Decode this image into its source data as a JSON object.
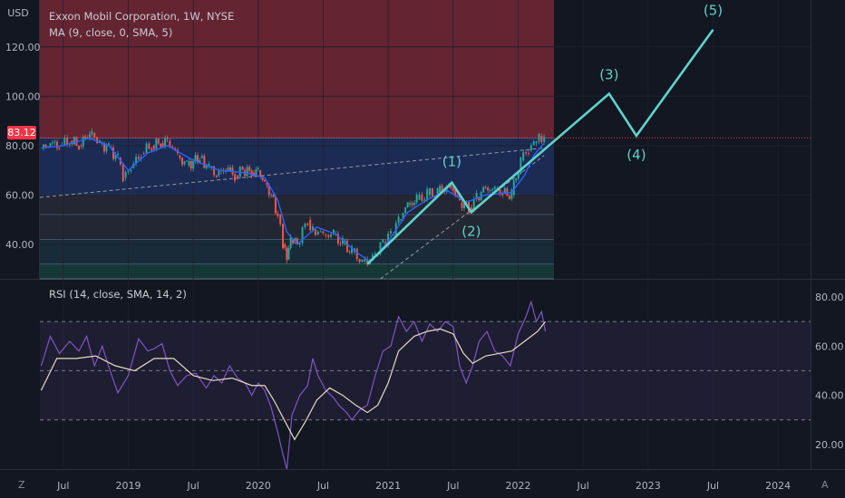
{
  "header": {
    "currency": "USD",
    "title": "Exxon Mobil Corporation, 1W, NYSE",
    "ma_label": "MA (9, close, 0, SMA, 5)",
    "last_price": "83.12"
  },
  "rsi_panel": {
    "label": "RSI (14, close, SMA, 14, 2)"
  },
  "bottom_bar": {
    "left_button": "Z",
    "right_button": "A"
  },
  "colors": {
    "background": "#131722",
    "up_candle": "#26a69a",
    "down_candle": "#ef5350",
    "ma_line": "#2962ff",
    "wave_line": "#5fd3c9",
    "rsi_line": "#7e57c2",
    "rsi_ma_line": "#e8dcc0",
    "last_price": "#f23645"
  },
  "chart_data": [
    {
      "type": "line",
      "title": "Exxon Mobil Corporation, 1W, NYSE",
      "y_axis_labels": [
        "120.00",
        "100.00",
        "80.00",
        "60.00",
        "40.00"
      ],
      "y_axis_ticks": [
        120,
        100,
        80,
        60,
        40
      ],
      "ylim": [
        26,
        139
      ],
      "x_axis_labels": [
        "Jul",
        "2019",
        "Jul",
        "2020",
        "Jul",
        "2021",
        "Jul",
        "2022",
        "Jul",
        "2023",
        "Jul",
        "2024"
      ],
      "x_axis_ticks": [
        2018.5,
        2019.0,
        2019.5,
        2020.0,
        2020.5,
        2021.0,
        2021.5,
        2022.0,
        2022.5,
        2023.0,
        2023.5,
        2024.0
      ],
      "xlim": [
        2018.32,
        2024.25
      ],
      "last_price": 83.12,
      "price_path": [
        [
          2018.33,
          79
        ],
        [
          2018.4,
          81
        ],
        [
          2018.47,
          80
        ],
        [
          2018.55,
          82
        ],
        [
          2018.62,
          80
        ],
        [
          2018.67,
          83
        ],
        [
          2018.72,
          85
        ],
        [
          2018.78,
          81
        ],
        [
          2018.85,
          79
        ],
        [
          2018.92,
          75
        ],
        [
          2018.96,
          67
        ],
        [
          2019.02,
          71
        ],
        [
          2019.1,
          77
        ],
        [
          2019.18,
          80
        ],
        [
          2019.25,
          81
        ],
        [
          2019.3,
          82
        ],
        [
          2019.38,
          76
        ],
        [
          2019.45,
          72
        ],
        [
          2019.55,
          75
        ],
        [
          2019.62,
          71
        ],
        [
          2019.68,
          68
        ],
        [
          2019.75,
          71
        ],
        [
          2019.82,
          68
        ],
        [
          2019.88,
          70
        ],
        [
          2019.95,
          69
        ],
        [
          2020.0,
          70
        ],
        [
          2020.05,
          65
        ],
        [
          2020.1,
          60
        ],
        [
          2020.15,
          52
        ],
        [
          2020.19,
          40
        ],
        [
          2020.22,
          34
        ],
        [
          2020.25,
          42
        ],
        [
          2020.3,
          40
        ],
        [
          2020.38,
          50
        ],
        [
          2020.42,
          46
        ],
        [
          2020.5,
          44
        ],
        [
          2020.58,
          44
        ],
        [
          2020.65,
          40
        ],
        [
          2020.72,
          37
        ],
        [
          2020.8,
          33
        ],
        [
          2020.84,
          32
        ],
        [
          2020.9,
          36
        ],
        [
          2020.96,
          41
        ],
        [
          2021.02,
          44
        ],
        [
          2021.08,
          50
        ],
        [
          2021.15,
          56
        ],
        [
          2021.22,
          58
        ],
        [
          2021.3,
          60
        ],
        [
          2021.38,
          61
        ],
        [
          2021.45,
          63
        ],
        [
          2021.5,
          62
        ],
        [
          2021.55,
          57
        ],
        [
          2021.62,
          55
        ],
        [
          2021.68,
          59
        ],
        [
          2021.75,
          63
        ],
        [
          2021.82,
          62
        ],
        [
          2021.88,
          61
        ],
        [
          2021.95,
          60
        ],
        [
          2022.02,
          74
        ],
        [
          2022.08,
          78
        ],
        [
          2022.12,
          81
        ],
        [
          2022.16,
          84
        ],
        [
          2022.2,
          83
        ]
      ],
      "ma_path": [
        [
          2018.33,
          79
        ],
        [
          2018.5,
          80
        ],
        [
          2018.7,
          83
        ],
        [
          2018.85,
          80
        ],
        [
          2019.0,
          70
        ],
        [
          2019.15,
          77
        ],
        [
          2019.3,
          80
        ],
        [
          2019.5,
          74
        ],
        [
          2019.7,
          70
        ],
        [
          2019.9,
          69
        ],
        [
          2020.05,
          67
        ],
        [
          2020.15,
          58
        ],
        [
          2020.22,
          45
        ],
        [
          2020.3,
          40
        ],
        [
          2020.45,
          47
        ],
        [
          2020.6,
          44
        ],
        [
          2020.75,
          37
        ],
        [
          2020.86,
          33
        ],
        [
          2021.0,
          41
        ],
        [
          2021.15,
          53
        ],
        [
          2021.3,
          58
        ],
        [
          2021.45,
          62
        ],
        [
          2021.6,
          57
        ],
        [
          2021.75,
          60
        ],
        [
          2021.95,
          61
        ],
        [
          2022.05,
          68
        ],
        [
          2022.12,
          76
        ],
        [
          2022.2,
          81
        ]
      ],
      "elliott_wave_labels": [
        "(1)",
        "(2)",
        "(3)",
        "(4)",
        "(5)"
      ],
      "elliott_wave_points": [
        [
          2020.84,
          32
        ],
        [
          2021.49,
          65
        ],
        [
          2021.64,
          53
        ],
        [
          2022.7,
          101
        ],
        [
          2022.91,
          84
        ],
        [
          2023.5,
          127
        ]
      ],
      "zones": [
        {
          "from": 83,
          "to": 139,
          "color": "#802a38"
        },
        {
          "from": 60,
          "to": 83,
          "color": "#1f3366"
        },
        {
          "from": 52,
          "to": 60,
          "color": "#2a2e39"
        },
        {
          "from": 42,
          "to": 52,
          "color": "#2a2e39"
        },
        {
          "from": 32,
          "to": 42,
          "color": "#1c3342"
        },
        {
          "from": 26,
          "to": 32,
          "color": "#17443f"
        }
      ]
    },
    {
      "type": "line",
      "title": "RSI (14, close, SMA, 14, 2)",
      "y_axis_labels": [
        "80.00",
        "60.00",
        "40.00",
        "20.00"
      ],
      "y_axis_ticks": [
        80,
        60,
        40,
        20
      ],
      "ylim": [
        10,
        87
      ],
      "bands": [
        70,
        50,
        30
      ],
      "series": [
        {
          "values": [
            [
              2018.33,
              52
            ],
            [
              2018.4,
              64
            ],
            [
              2018.47,
              57
            ],
            [
              2018.55,
              62
            ],
            [
              2018.62,
              58
            ],
            [
              2018.68,
              64
            ],
            [
              2018.74,
              52
            ],
            [
              2018.8,
              60
            ],
            [
              2018.86,
              50
            ],
            [
              2018.92,
              41
            ],
            [
              2019.0,
              48
            ],
            [
              2019.08,
              63
            ],
            [
              2019.15,
              58
            ],
            [
              2019.2,
              59
            ],
            [
              2019.26,
              61
            ],
            [
              2019.32,
              50
            ],
            [
              2019.38,
              44
            ],
            [
              2019.45,
              48
            ],
            [
              2019.52,
              49
            ],
            [
              2019.6,
              43
            ],
            [
              2019.66,
              48
            ],
            [
              2019.72,
              45
            ],
            [
              2019.78,
              52
            ],
            [
              2019.84,
              47
            ],
            [
              2019.9,
              45
            ],
            [
              2019.95,
              40
            ],
            [
              2020.0,
              45
            ],
            [
              2020.05,
              42
            ],
            [
              2020.1,
              35
            ],
            [
              2020.15,
              25
            ],
            [
              2020.19,
              16
            ],
            [
              2020.22,
              10
            ],
            [
              2020.26,
              32
            ],
            [
              2020.32,
              40
            ],
            [
              2020.38,
              44
            ],
            [
              2020.42,
              55
            ],
            [
              2020.46,
              48
            ],
            [
              2020.52,
              42
            ],
            [
              2020.58,
              39
            ],
            [
              2020.62,
              36
            ],
            [
              2020.68,
              33
            ],
            [
              2020.72,
              30
            ],
            [
              2020.78,
              34
            ],
            [
              2020.84,
              36
            ],
            [
              2020.9,
              48
            ],
            [
              2020.96,
              58
            ],
            [
              2021.02,
              60
            ],
            [
              2021.08,
              72
            ],
            [
              2021.14,
              66
            ],
            [
              2021.2,
              70
            ],
            [
              2021.26,
              62
            ],
            [
              2021.32,
              69
            ],
            [
              2021.38,
              66
            ],
            [
              2021.44,
              70
            ],
            [
              2021.5,
              68
            ],
            [
              2021.55,
              52
            ],
            [
              2021.6,
              45
            ],
            [
              2021.65,
              52
            ],
            [
              2021.7,
              62
            ],
            [
              2021.76,
              66
            ],
            [
              2021.82,
              58
            ],
            [
              2021.88,
              56
            ],
            [
              2021.94,
              52
            ],
            [
              2022.0,
              65
            ],
            [
              2022.06,
              72
            ],
            [
              2022.1,
              78
            ],
            [
              2022.14,
              70
            ],
            [
              2022.18,
              74
            ],
            [
              2022.21,
              66
            ]
          ]
        },
        {
          "values": [
            [
              2018.33,
              42
            ],
            [
              2018.45,
              55
            ],
            [
              2018.6,
              55
            ],
            [
              2018.75,
              56
            ],
            [
              2018.9,
              52
            ],
            [
              2019.05,
              50
            ],
            [
              2019.2,
              55
            ],
            [
              2019.35,
              55
            ],
            [
              2019.5,
              48
            ],
            [
              2019.65,
              46
            ],
            [
              2019.8,
              47
            ],
            [
              2019.95,
              44
            ],
            [
              2020.05,
              44
            ],
            [
              2020.12,
              38
            ],
            [
              2020.2,
              30
            ],
            [
              2020.28,
              22
            ],
            [
              2020.36,
              29
            ],
            [
              2020.45,
              38
            ],
            [
              2020.55,
              43
            ],
            [
              2020.65,
              40
            ],
            [
              2020.75,
              36
            ],
            [
              2020.84,
              33
            ],
            [
              2020.92,
              36
            ],
            [
              2021.0,
              45
            ],
            [
              2021.08,
              58
            ],
            [
              2021.2,
              64
            ],
            [
              2021.3,
              66
            ],
            [
              2021.4,
              67
            ],
            [
              2021.5,
              65
            ],
            [
              2021.58,
              57
            ],
            [
              2021.65,
              53
            ],
            [
              2021.75,
              56
            ],
            [
              2021.85,
              57
            ],
            [
              2021.95,
              58
            ],
            [
              2022.05,
              62
            ],
            [
              2022.15,
              66
            ],
            [
              2022.21,
              70
            ]
          ]
        }
      ]
    }
  ]
}
